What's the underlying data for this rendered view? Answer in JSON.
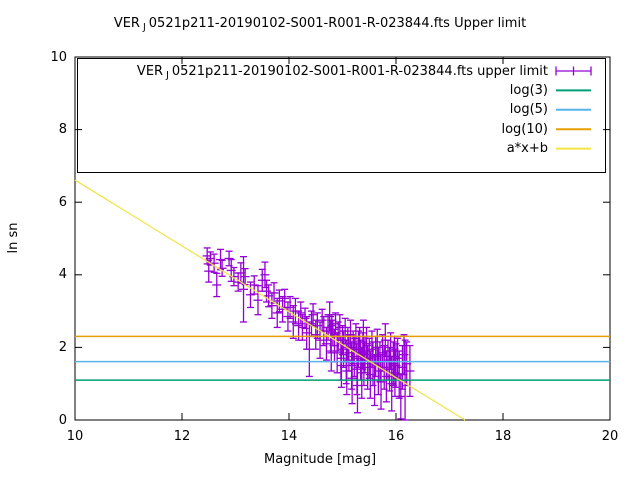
{
  "title": {
    "prefix": "VER",
    "sub": "J",
    "rest": "0521p211-20190102-S001-R001-R-023844.fts Upper limit"
  },
  "axes": {
    "xlabel": "Magnitude [mag]",
    "ylabel": "ln sn",
    "x_ticks": [
      10,
      12,
      14,
      16,
      18,
      20
    ],
    "y_ticks": [
      0,
      2,
      4,
      6,
      8,
      10
    ]
  },
  "legend": {
    "entries": [
      {
        "label_prefix": "VER",
        "label_sub": "J",
        "label_rest": "0521p211-20190102-S001-R001-R-023844.fts upper limit",
        "style": "errorbar",
        "color": "#9400d3"
      },
      {
        "label": "log(3)",
        "style": "line",
        "color": "#009e73"
      },
      {
        "label": "log(5)",
        "style": "line",
        "color": "#56b4e9"
      },
      {
        "label": "log(10)",
        "style": "line",
        "color": "#e69f00"
      },
      {
        "label": "a*x+b",
        "style": "line",
        "color": "#f0e442"
      }
    ]
  },
  "colors": {
    "series": "#9400d3",
    "log3": "#009e73",
    "log5": "#56b4e9",
    "log10": "#e69f00",
    "fit": "#f0e442",
    "axis": "#000000",
    "background": "#ffffff"
  },
  "chart_data": {
    "type": "scatter",
    "title": "VER J 0521p211-20190102-S001-R001-R-023844.fts Upper limit",
    "xlabel": "Magnitude [mag]",
    "ylabel": "ln sn",
    "xlim": [
      10,
      20
    ],
    "ylim": [
      0,
      10
    ],
    "grid": false,
    "legend_position": "top-right-box",
    "series": [
      {
        "name": "VER J 0521p211-20190102-S001-R001-R-023844.fts upper limit",
        "style": "errorbars",
        "color": "#9400d3",
        "points_format": [
          "magnitude",
          "ln_sn",
          "error"
        ],
        "points": [
          [
            12.47,
            4.52,
            0.22
          ],
          [
            12.5,
            4.1,
            0.3
          ],
          [
            12.53,
            4.45,
            0.18
          ],
          [
            12.6,
            4.32,
            0.25
          ],
          [
            12.65,
            3.72,
            0.32
          ],
          [
            12.72,
            4.42,
            0.28
          ],
          [
            12.75,
            4.18,
            0.22
          ],
          [
            12.88,
            4.45,
            0.2
          ],
          [
            12.92,
            4.12,
            0.3
          ],
          [
            12.97,
            3.95,
            0.25
          ],
          [
            13.05,
            3.8,
            0.25
          ],
          [
            13.1,
            4.05,
            0.28
          ],
          [
            13.15,
            3.6,
            0.9
          ],
          [
            13.18,
            3.95,
            0.22
          ],
          [
            13.28,
            3.45,
            0.35
          ],
          [
            13.35,
            3.72,
            0.25
          ],
          [
            13.42,
            3.3,
            0.4
          ],
          [
            13.5,
            3.85,
            0.3
          ],
          [
            13.55,
            4.0,
            0.35
          ],
          [
            13.58,
            3.55,
            0.3
          ],
          [
            13.62,
            3.42,
            0.3
          ],
          [
            13.68,
            3.15,
            0.35
          ],
          [
            13.72,
            3.5,
            0.28
          ],
          [
            13.78,
            2.95,
            0.4
          ],
          [
            13.82,
            3.28,
            0.3
          ],
          [
            13.88,
            3.05,
            0.35
          ],
          [
            13.92,
            3.35,
            0.25
          ],
          [
            13.98,
            2.85,
            0.4
          ],
          [
            14.02,
            3.1,
            0.3
          ],
          [
            14.08,
            2.7,
            0.45
          ],
          [
            14.12,
            3.0,
            0.35
          ],
          [
            14.18,
            2.6,
            0.4
          ],
          [
            14.22,
            2.95,
            0.3
          ],
          [
            14.25,
            2.55,
            0.35
          ],
          [
            14.3,
            2.8,
            0.28
          ],
          [
            14.33,
            2.4,
            0.45
          ],
          [
            14.38,
            1.95,
            0.75
          ],
          [
            14.42,
            2.65,
            0.35
          ],
          [
            14.45,
            2.9,
            0.3
          ],
          [
            14.5,
            2.35,
            0.4
          ],
          [
            14.53,
            2.6,
            0.35
          ],
          [
            14.58,
            2.2,
            0.5
          ],
          [
            14.62,
            2.75,
            0.3
          ],
          [
            14.65,
            2.45,
            0.4
          ],
          [
            14.7,
            2.1,
            0.45
          ],
          [
            14.73,
            2.55,
            0.35
          ],
          [
            14.76,
            2.85,
            0.4
          ],
          [
            14.78,
            2.3,
            0.45
          ],
          [
            14.79,
            1.9,
            0.55
          ],
          [
            14.8,
            2.6,
            0.3
          ],
          [
            14.82,
            2.4,
            0.35
          ],
          [
            14.85,
            2.05,
            0.45
          ],
          [
            14.87,
            2.65,
            0.3
          ],
          [
            14.9,
            1.85,
            0.55
          ],
          [
            14.92,
            2.3,
            0.4
          ],
          [
            14.95,
            2.55,
            0.35
          ],
          [
            14.97,
            1.7,
            0.6
          ],
          [
            14.98,
            1.5,
            0.6
          ],
          [
            15.0,
            2.2,
            0.4
          ],
          [
            15.02,
            1.95,
            0.5
          ],
          [
            15.05,
            2.45,
            0.35
          ],
          [
            15.07,
            1.6,
            0.6
          ],
          [
            15.08,
            1.35,
            0.65
          ],
          [
            15.1,
            2.1,
            0.45
          ],
          [
            15.12,
            1.85,
            0.5
          ],
          [
            15.15,
            2.35,
            0.4
          ],
          [
            15.17,
            1.5,
            0.65
          ],
          [
            15.18,
            1.15,
            0.7
          ],
          [
            15.2,
            2.0,
            0.45
          ],
          [
            15.22,
            1.75,
            0.55
          ],
          [
            15.25,
            2.25,
            0.4
          ],
          [
            15.27,
            1.4,
            0.7
          ],
          [
            15.28,
            0.95,
            0.75
          ],
          [
            15.3,
            1.95,
            0.5
          ],
          [
            15.32,
            2.15,
            0.4
          ],
          [
            15.34,
            1.65,
            0.55
          ],
          [
            15.36,
            1.3,
            0.7
          ],
          [
            15.38,
            1.9,
            0.5
          ],
          [
            15.39,
            2.3,
            0.45
          ],
          [
            15.4,
            1.55,
            0.6
          ],
          [
            15.42,
            1.8,
            0.5
          ],
          [
            15.45,
            2.1,
            0.45
          ],
          [
            15.47,
            1.45,
            0.6
          ],
          [
            15.5,
            1.7,
            0.55
          ],
          [
            15.52,
            1.25,
            0.65
          ],
          [
            15.55,
            1.95,
            0.5
          ],
          [
            15.57,
            1.55,
            0.6
          ],
          [
            15.6,
            1.1,
            0.7
          ],
          [
            15.62,
            1.75,
            0.55
          ],
          [
            15.65,
            2.0,
            0.5
          ],
          [
            15.67,
            1.35,
            0.65
          ],
          [
            15.7,
            1.6,
            0.55
          ],
          [
            15.72,
            1.05,
            0.75
          ],
          [
            15.75,
            1.85,
            0.5
          ],
          [
            15.78,
            1.45,
            0.6
          ],
          [
            15.8,
            2.2,
            0.45
          ],
          [
            15.82,
            1.2,
            0.7
          ],
          [
            15.85,
            1.65,
            0.55
          ],
          [
            15.88,
            1.4,
            0.6
          ],
          [
            15.9,
            1.9,
            0.5
          ],
          [
            15.92,
            1.0,
            0.75
          ],
          [
            15.95,
            1.55,
            0.6
          ],
          [
            15.97,
            1.75,
            0.55
          ],
          [
            15.98,
            1.3,
            0.65
          ],
          [
            16.0,
            1.5,
            0.6
          ],
          [
            16.03,
            1.7,
            0.55
          ],
          [
            16.06,
            1.25,
            0.65
          ],
          [
            16.09,
            0.65,
            0.62
          ],
          [
            16.12,
            1.45,
            0.6
          ],
          [
            16.15,
            1.8,
            0.55
          ],
          [
            16.17,
            1.1,
            1.1
          ],
          [
            16.2,
            1.55,
            0.6
          ],
          [
            16.26,
            1.35,
            0.7
          ]
        ]
      },
      {
        "name": "log(3)",
        "style": "hline",
        "y": 1.0986,
        "color": "#009e73"
      },
      {
        "name": "log(5)",
        "style": "hline",
        "y": 1.6094,
        "color": "#56b4e9"
      },
      {
        "name": "log(10)",
        "style": "hline",
        "y": 2.3026,
        "color": "#e69f00"
      },
      {
        "name": "a*x+b",
        "style": "linear",
        "a": -0.907,
        "b": 15.68,
        "x_start": 10,
        "clip_at_y": 0,
        "color": "#f0e442"
      }
    ]
  }
}
